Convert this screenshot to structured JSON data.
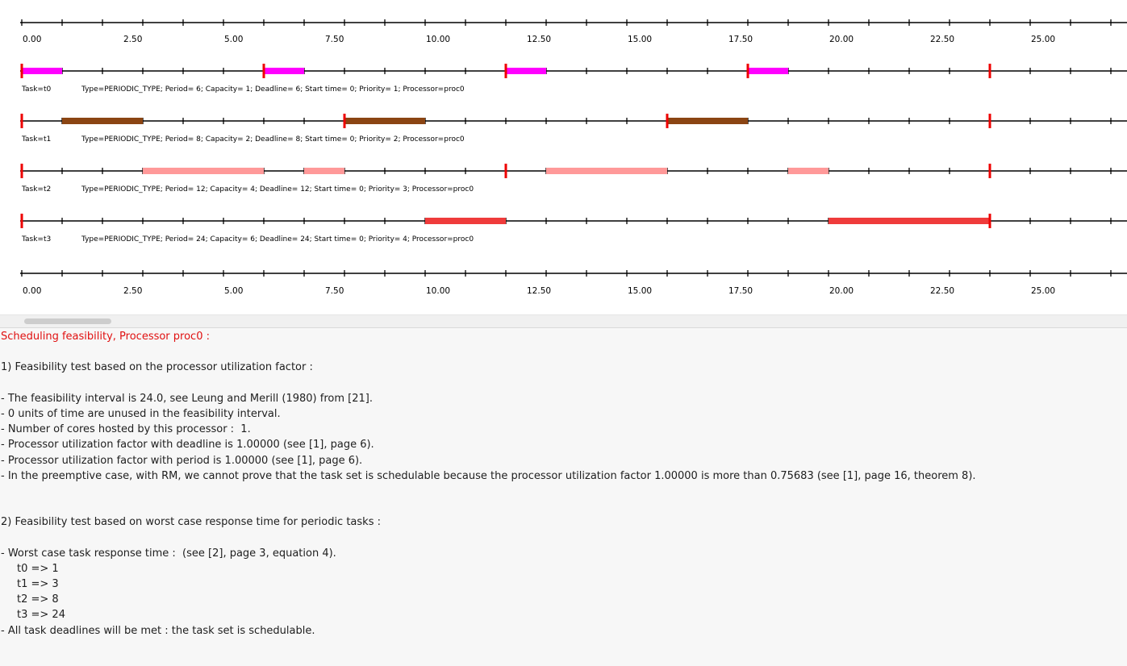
{
  "timeline": {
    "axis_ticks": [
      "0.00",
      "2.50",
      "5.00",
      "7.50",
      "10.00",
      "12.50",
      "15.00",
      "17.50",
      "20.00",
      "22.50",
      "25.00"
    ],
    "tasks": [
      {
        "name": "Task=t0",
        "info": "Type=PERIODIC_TYPE; Period= 6; Capacity= 1; Deadline= 6; Start time= 0; Priority= 1; Processor=proc0",
        "color": "#ff00ff",
        "segments": [
          [
            0,
            1
          ],
          [
            6,
            7
          ],
          [
            12,
            13
          ],
          [
            18,
            19
          ]
        ],
        "releases": [
          0,
          6,
          12,
          18,
          24
        ]
      },
      {
        "name": "Task=t1",
        "info": "Type=PERIODIC_TYPE; Period= 8; Capacity= 2; Deadline= 8; Start time= 0; Priority= 2; Processor=proc0",
        "color": "#8b4513",
        "segments": [
          [
            1,
            3
          ],
          [
            8,
            10
          ],
          [
            16,
            18
          ]
        ],
        "releases": [
          0,
          8,
          16,
          24
        ]
      },
      {
        "name": "Task=t2",
        "info": "Type=PERIODIC_TYPE; Period= 12; Capacity= 4; Deadline= 12; Start time= 0; Priority= 3; Processor=proc0",
        "color": "#ff9999",
        "segments": [
          [
            3,
            6
          ],
          [
            7,
            8
          ],
          [
            13,
            16
          ],
          [
            19,
            20
          ]
        ],
        "releases": [
          0,
          12,
          24
        ]
      },
      {
        "name": "Task=t3",
        "info": "Type=PERIODIC_TYPE; Period= 24; Capacity= 6; Deadline= 24; Start time= 0; Priority= 4; Processor=proc0",
        "color": "#ef3b3b",
        "segments": [
          [
            10,
            12
          ],
          [
            20,
            24
          ]
        ],
        "releases": [
          0,
          24
        ]
      }
    ]
  },
  "report": {
    "lines": [
      {
        "text": "Scheduling feasibility, Processor proc0 :",
        "style": "red"
      },
      {
        "text": ""
      },
      {
        "text": "1) Feasibility test based on the processor utilization factor :"
      },
      {
        "text": ""
      },
      {
        "text": "- The feasibility interval is 24.0, see Leung and Merill (1980) from [21]."
      },
      {
        "text": "- 0 units of time are unused in the feasibility interval."
      },
      {
        "text": "- Number of cores hosted by this processor :  1."
      },
      {
        "text": "- Processor utilization factor with deadline is 1.00000 (see [1], page 6)."
      },
      {
        "text": "- Processor utilization factor with period is 1.00000 (see [1], page 6)."
      },
      {
        "text": "- In the preemptive case, with RM, we cannot prove that the task set is schedulable because the processor utilization factor 1.00000 is more than 0.75683 (see [1], page 16, theorem 8)."
      },
      {
        "text": ""
      },
      {
        "text": ""
      },
      {
        "text": "2) Feasibility test based on worst case response time for periodic tasks :"
      },
      {
        "text": ""
      },
      {
        "text": "- Worst case task response time :  (see [2], page 3, equation 4)."
      },
      {
        "text": "t0 => 1",
        "style": "indent"
      },
      {
        "text": "t1 => 3",
        "style": "indent"
      },
      {
        "text": "t2 => 8",
        "style": "indent"
      },
      {
        "text": "t3 => 24",
        "style": "indent"
      },
      {
        "text": "- All task deadlines will be met : the task set is schedulable."
      }
    ]
  }
}
